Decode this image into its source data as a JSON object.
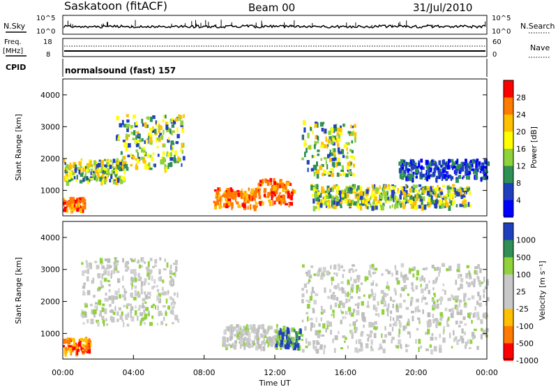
{
  "header": {
    "station": "Saskatoon (fitACF)",
    "beam": "Beam 00",
    "date": "31/Jul/2010"
  },
  "aux_panels": {
    "nsky_label": "N.Sky",
    "nsearch_label": "N.Search",
    "noise_ticks": [
      "10^5",
      "10^0"
    ],
    "freq_label_line1": "Freq.",
    "freq_label_line2": "[MHz]",
    "freq_ticks": [
      "18",
      "8"
    ],
    "nave_label": "Nave",
    "nave_ticks": [
      "60",
      "0"
    ],
    "cpid_label": "CPID",
    "cpid_text": "normalsound (fast) 157"
  },
  "chart_data": [
    {
      "type": "heatmap",
      "name": "power",
      "xlabel": "",
      "ylabel": "Slant Range [km]",
      "xlim_hours": [
        0,
        24
      ],
      "ylim_km": [
        200,
        4500
      ],
      "y_ticks": [
        1000,
        2000,
        3000,
        4000
      ],
      "colorbar": {
        "label": "Power [dB]",
        "ticks": [
          "28",
          "24",
          "20",
          "16",
          "12",
          "8",
          "4"
        ],
        "colors": [
          "#ff0000",
          "#ff7a00",
          "#ffc000",
          "#ffff00",
          "#8fd23c",
          "#2f8f55",
          "#1f3fbf",
          "#0000ff"
        ]
      },
      "echo_regions": [
        {
          "t0": 0.0,
          "t1": 1.2,
          "r0": 400,
          "r1": 800,
          "level": "strong"
        },
        {
          "t0": 0.0,
          "t1": 3.5,
          "r0": 1300,
          "r1": 2000,
          "level": "medium"
        },
        {
          "t0": 3.0,
          "t1": 6.8,
          "r0": 1700,
          "r1": 3400,
          "level": "medium"
        },
        {
          "t0": 8.5,
          "t1": 11.0,
          "r0": 500,
          "r1": 1100,
          "level": "strong"
        },
        {
          "t0": 11.0,
          "t1": 13.0,
          "r0": 600,
          "r1": 1400,
          "level": "strong"
        },
        {
          "t0": 13.5,
          "t1": 16.5,
          "r0": 1500,
          "r1": 3200,
          "level": "medium"
        },
        {
          "t0": 14.0,
          "t1": 23.0,
          "r0": 500,
          "r1": 1200,
          "level": "medium"
        },
        {
          "t0": 19.0,
          "t1": 24.0,
          "r0": 1400,
          "r1": 2000,
          "level": "weak"
        }
      ]
    },
    {
      "type": "heatmap",
      "name": "velocity",
      "xlabel": "Time UT",
      "ylabel": "Slant Range [km]",
      "xlim_hours": [
        0,
        24
      ],
      "ylim_km": [
        200,
        4500
      ],
      "x_ticks": [
        "00:00",
        "04:00",
        "08:00",
        "12:00",
        "16:00",
        "20:00",
        "00:00"
      ],
      "y_ticks": [
        1000,
        2000,
        3000,
        4000
      ],
      "colorbar": {
        "label": "Velocity [m s⁻¹]",
        "ticks": [
          "1000",
          "500",
          "100",
          "25",
          "-25",
          "-100",
          "-500",
          "-1000"
        ],
        "colors": [
          "#1f3fbf",
          "#2f8f55",
          "#8fd23c",
          "#c8c8c8",
          "#c8c8c8",
          "#ffc000",
          "#ff7a00",
          "#ff0000"
        ]
      },
      "echo_regions": [
        {
          "t0": 0.0,
          "t1": 1.5,
          "r0": 400,
          "r1": 900,
          "level": "away"
        },
        {
          "t0": 1.0,
          "t1": 6.5,
          "r0": 1300,
          "r1": 3400,
          "level": "ground"
        },
        {
          "t0": 9.0,
          "t1": 13.0,
          "r0": 600,
          "r1": 1300,
          "level": "ground"
        },
        {
          "t0": 12.0,
          "t1": 13.5,
          "r0": 600,
          "r1": 1200,
          "level": "toward"
        },
        {
          "t0": 13.5,
          "t1": 24.0,
          "r0": 500,
          "r1": 3200,
          "level": "ground"
        }
      ]
    }
  ]
}
